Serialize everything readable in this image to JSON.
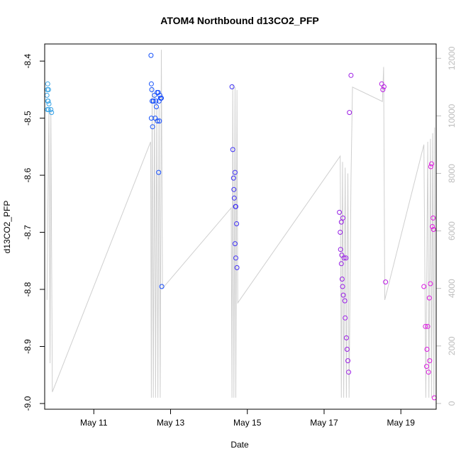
{
  "chart_data": {
    "type": "scatter",
    "title": "ATOM4 Northbound d13CO2_PFP",
    "xlabel": "Date",
    "ylabel": "d13CO2_PFP",
    "xlim": [
      9.72,
      19.92
    ],
    "ylim": [
      -9.01,
      -8.37
    ],
    "y2lim": [
      -200,
      12500
    ],
    "x_ticks": [
      {
        "value": 11,
        "label": "May 11"
      },
      {
        "value": 13,
        "label": "May 13"
      },
      {
        "value": 15,
        "label": "May 15"
      },
      {
        "value": 17,
        "label": "May 17"
      },
      {
        "value": 19,
        "label": "May 19"
      }
    ],
    "y_ticks": [
      {
        "value": -9.0,
        "label": "-9.0"
      },
      {
        "value": -8.9,
        "label": "-8.9"
      },
      {
        "value": -8.8,
        "label": "-8.8"
      },
      {
        "value": -8.7,
        "label": "-8.7"
      },
      {
        "value": -8.6,
        "label": "-8.6"
      },
      {
        "value": -8.5,
        "label": "-8.5"
      },
      {
        "value": -8.4,
        "label": "-8.4"
      }
    ],
    "y2_ticks": [
      {
        "value": 0,
        "label": "0"
      },
      {
        "value": 2000,
        "label": "2000"
      },
      {
        "value": 4000,
        "label": "4000"
      },
      {
        "value": 6000,
        "label": "6000"
      },
      {
        "value": 8000,
        "label": "8000"
      },
      {
        "value": 10000,
        "label": "10000"
      },
      {
        "value": 12000,
        "label": "12000"
      }
    ],
    "series": [
      {
        "marker": "open-circle",
        "color_by": "time",
        "colors": [
          "#3aa6e6",
          "#0f3fff",
          "#7a1fe8",
          "#e21ae0"
        ],
        "points": [
          [
            9.78,
            -8.46
          ],
          [
            9.8,
            -8.44
          ],
          [
            9.8,
            -8.47
          ],
          [
            9.81,
            -8.47
          ],
          [
            9.82,
            -8.485
          ],
          [
            9.83,
            -8.475
          ],
          [
            9.79,
            -8.485
          ],
          [
            9.88,
            -8.485
          ],
          [
            9.9,
            -8.49
          ],
          [
            9.82,
            -8.45
          ],
          [
            9.79,
            -8.45
          ],
          [
            12.49,
            -8.39
          ],
          [
            12.5,
            -8.44
          ],
          [
            12.51,
            -8.45
          ],
          [
            12.52,
            -8.47
          ],
          [
            12.5,
            -8.5
          ],
          [
            12.53,
            -8.515
          ],
          [
            12.55,
            -8.47
          ],
          [
            12.58,
            -8.46
          ],
          [
            12.6,
            -8.5
          ],
          [
            12.62,
            -8.47
          ],
          [
            12.63,
            -8.48
          ],
          [
            12.65,
            -8.455
          ],
          [
            12.66,
            -8.505
          ],
          [
            12.68,
            -8.455
          ],
          [
            12.7,
            -8.47
          ],
          [
            12.72,
            -8.46
          ],
          [
            12.74,
            -8.465
          ],
          [
            12.76,
            -8.465
          ],
          [
            12.71,
            -8.505
          ],
          [
            12.69,
            -8.595
          ],
          [
            12.77,
            -8.795
          ],
          [
            12.55,
            -8.47
          ],
          [
            14.6,
            -8.445
          ],
          [
            14.62,
            -8.555
          ],
          [
            14.64,
            -8.605
          ],
          [
            14.65,
            -8.625
          ],
          [
            14.66,
            -8.64
          ],
          [
            14.68,
            -8.595
          ],
          [
            14.69,
            -8.655
          ],
          [
            14.7,
            -8.655
          ],
          [
            14.72,
            -8.685
          ],
          [
            14.68,
            -8.72
          ],
          [
            14.7,
            -8.745
          ],
          [
            14.73,
            -8.762
          ],
          [
            17.4,
            -8.665
          ],
          [
            17.42,
            -8.7
          ],
          [
            17.43,
            -8.73
          ],
          [
            17.45,
            -8.755
          ],
          [
            17.46,
            -8.74
          ],
          [
            17.47,
            -8.782
          ],
          [
            17.48,
            -8.795
          ],
          [
            17.5,
            -8.81
          ],
          [
            17.52,
            -8.745
          ],
          [
            17.54,
            -8.82
          ],
          [
            17.55,
            -8.85
          ],
          [
            17.57,
            -8.745
          ],
          [
            17.58,
            -8.885
          ],
          [
            17.6,
            -8.905
          ],
          [
            17.62,
            -8.925
          ],
          [
            17.64,
            -8.945
          ],
          [
            17.66,
            -8.49
          ],
          [
            17.7,
            -8.425
          ],
          [
            17.45,
            -8.682
          ],
          [
            17.49,
            -8.675
          ],
          [
            18.5,
            -8.44
          ],
          [
            18.53,
            -8.45
          ],
          [
            18.56,
            -8.445
          ],
          [
            18.6,
            -8.787
          ],
          [
            19.6,
            -8.795
          ],
          [
            19.64,
            -8.865
          ],
          [
            19.67,
            -8.935
          ],
          [
            19.68,
            -8.905
          ],
          [
            19.7,
            -8.865
          ],
          [
            19.72,
            -8.945
          ],
          [
            19.75,
            -8.925
          ],
          [
            19.77,
            -8.79
          ],
          [
            19.78,
            -8.585
          ],
          [
            19.8,
            -8.58
          ],
          [
            19.82,
            -8.69
          ],
          [
            19.84,
            -8.675
          ],
          [
            19.85,
            -8.695
          ],
          [
            19.74,
            -8.815
          ],
          [
            19.87,
            -8.99
          ]
        ]
      },
      {
        "axis": "right",
        "color": "#cfcfcf",
        "line": [
          [
            9.78,
            3600
          ],
          [
            9.83,
            10300
          ],
          [
            9.86,
            1400
          ],
          [
            9.88,
            10200
          ],
          [
            9.92,
            400
          ],
          [
            12.48,
            9100
          ],
          [
            12.5,
            200
          ],
          [
            12.52,
            11000
          ],
          [
            12.55,
            200
          ],
          [
            12.58,
            10800
          ],
          [
            12.61,
            200
          ],
          [
            12.64,
            10500
          ],
          [
            12.67,
            200
          ],
          [
            12.7,
            10300
          ],
          [
            12.73,
            200
          ],
          [
            12.76,
            12300
          ],
          [
            12.79,
            4000
          ],
          [
            14.58,
            6800
          ],
          [
            14.6,
            200
          ],
          [
            14.62,
            11100
          ],
          [
            14.65,
            200
          ],
          [
            14.68,
            11000
          ],
          [
            14.7,
            200
          ],
          [
            14.73,
            10900
          ],
          [
            14.75,
            3500
          ],
          [
            17.42,
            8600
          ],
          [
            17.45,
            200
          ],
          [
            17.48,
            8400
          ],
          [
            17.51,
            200
          ],
          [
            17.55,
            8200
          ],
          [
            17.58,
            200
          ],
          [
            17.62,
            8000
          ],
          [
            17.65,
            200
          ],
          [
            17.7,
            7800
          ],
          [
            17.74,
            11000
          ],
          [
            18.52,
            10500
          ],
          [
            18.55,
            11700
          ],
          [
            18.58,
            3600
          ],
          [
            19.6,
            9000
          ],
          [
            19.65,
            200
          ],
          [
            19.7,
            9100
          ],
          [
            19.73,
            200
          ],
          [
            19.77,
            9200
          ],
          [
            19.8,
            200
          ],
          [
            19.83,
            9400
          ],
          [
            19.86,
            200
          ],
          [
            19.88,
            9600
          ]
        ]
      }
    ]
  }
}
